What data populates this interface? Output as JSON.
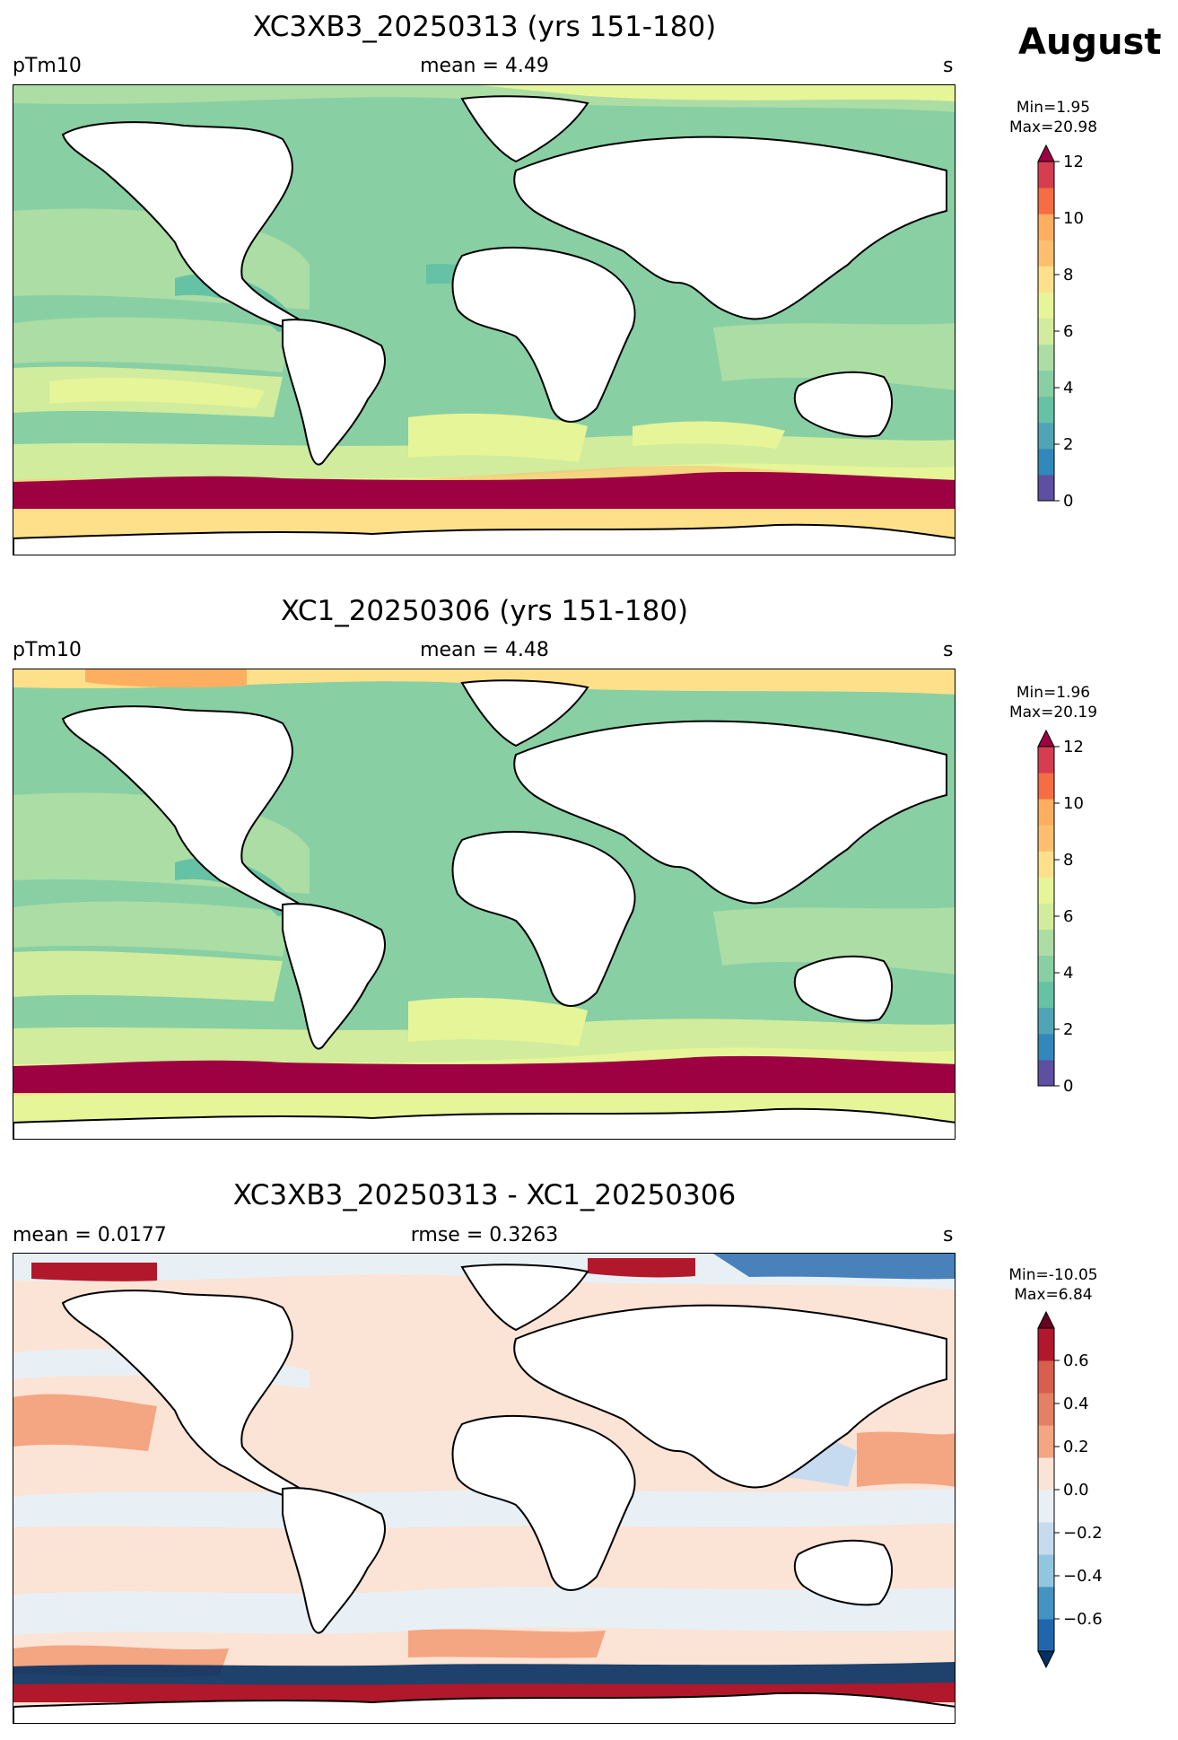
{
  "month": "August",
  "panels": [
    {
      "title": "XC3XB3_20250313 (yrs 151-180)",
      "left_label": "pTm10",
      "center_label": "mean = 4.49",
      "right_label": "s",
      "min_label": "Min=1.95",
      "max_label": "Max=20.98",
      "colorbar": {
        "ticks": [
          "0",
          "2",
          "4",
          "6",
          "8",
          "10",
          "12"
        ],
        "colors": [
          "#5e4fa2",
          "#3288bd",
          "#4fa4b5",
          "#66c2a5",
          "#88cfa4",
          "#abdda4",
          "#d0ec9c",
          "#e6f598",
          "#fee08b",
          "#fdbf6f",
          "#fdae61",
          "#f46d43",
          "#d53e4f",
          "#9e0142"
        ],
        "extend": "max"
      }
    },
    {
      "title": "XC1_20250306 (yrs 151-180)",
      "left_label": "pTm10",
      "center_label": "mean = 4.48",
      "right_label": "s",
      "min_label": "Min=1.96",
      "max_label": "Max=20.19",
      "colorbar": {
        "ticks": [
          "0",
          "2",
          "4",
          "6",
          "8",
          "10",
          "12"
        ],
        "colors": [
          "#5e4fa2",
          "#3288bd",
          "#4fa4b5",
          "#66c2a5",
          "#88cfa4",
          "#abdda4",
          "#d0ec9c",
          "#e6f598",
          "#fee08b",
          "#fdbf6f",
          "#fdae61",
          "#f46d43",
          "#d53e4f",
          "#9e0142"
        ],
        "extend": "max"
      }
    },
    {
      "title": "XC3XB3_20250313 - XC1_20250306",
      "left_label": "mean = 0.0177",
      "center_label": "rmse = 0.3263",
      "right_label": "s",
      "min_label": "Min=-10.05",
      "max_label": "Max=6.84",
      "colorbar": {
        "ticks": [
          "−0.6",
          "−0.4",
          "−0.2",
          "0.0",
          "0.2",
          "0.4",
          "0.6"
        ],
        "colors": [
          "#053061",
          "#2166ac",
          "#4393c3",
          "#92c5de",
          "#c6dbef",
          "#e8f0f6",
          "#fbe3d5",
          "#f4a582",
          "#e38066",
          "#d6604d",
          "#b2182b",
          "#67001f"
        ],
        "extend": "both"
      }
    }
  ]
}
